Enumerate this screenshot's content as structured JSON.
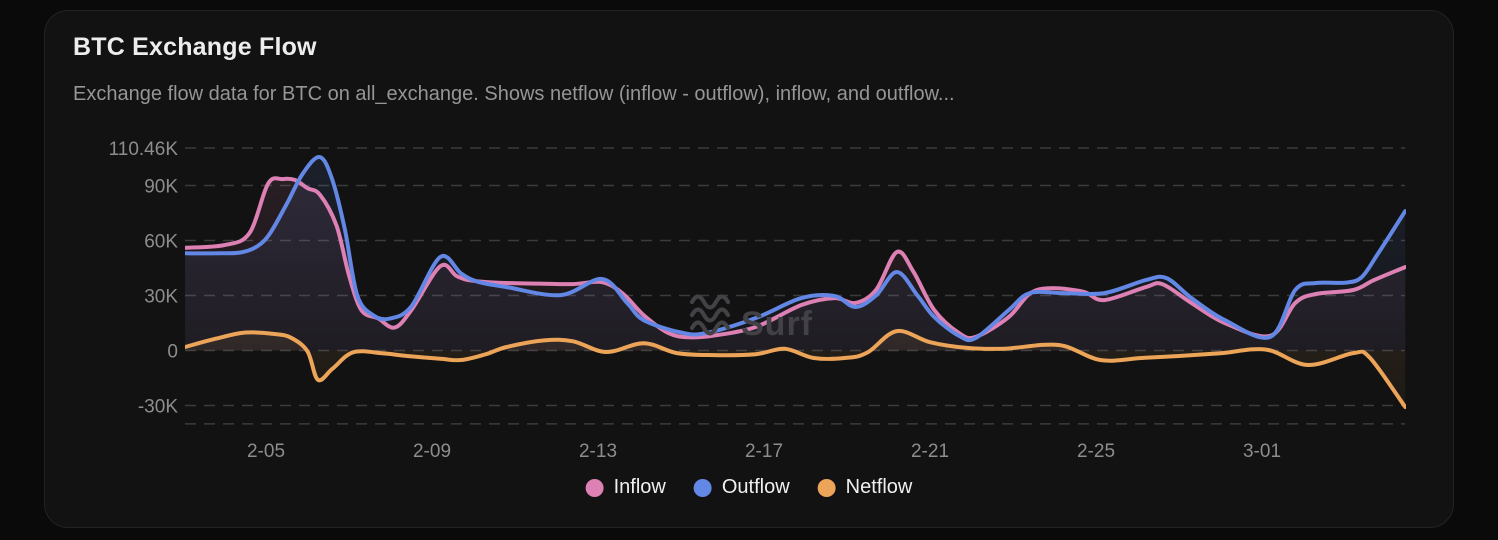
{
  "header": {
    "title": "BTC Exchange Flow",
    "subtitle": "Exchange flow data for BTC on all_exchange. Shows netflow (inflow - outflow), inflow, and outflow..."
  },
  "legend": {
    "items": [
      {
        "label": "Inflow",
        "color": "#dd80b4"
      },
      {
        "label": "Outflow",
        "color": "#6287e4"
      },
      {
        "label": "Netflow",
        "color": "#eba458"
      }
    ]
  },
  "watermark": {
    "icon": "waves-icon",
    "text": "Surf"
  },
  "colors": {
    "page_bg": "#0a0a0a",
    "card_bg": "#121212",
    "card_border": "#232323",
    "grid": "#3b3b3b",
    "axis_label": "#8d8d8d",
    "title": "#ededed",
    "subtitle": "#969696",
    "legend_text": "#f0f0f0",
    "watermark": "#414146",
    "inflow": "#dd80b4",
    "outflow": "#6287e4",
    "netflow": "#eba458"
  },
  "chart_data": {
    "type": "line",
    "title": "BTC Exchange Flow",
    "xlabel": "",
    "ylabel": "",
    "value_unit": "K (thousands of BTC)",
    "x_unit": "date (month-day), day offset measured from 2-03",
    "ylim": [
      -40,
      110.46
    ],
    "xlim_days": [
      0.05,
      29.45
    ],
    "grid": "dashed horizontal lines",
    "legend_position": "bottom center",
    "yticks": [
      {
        "label": "110.46K",
        "value": 110.46
      },
      {
        "label": "90K",
        "value": 90
      },
      {
        "label": "60K",
        "value": 60
      },
      {
        "label": "30K",
        "value": 30
      },
      {
        "label": "0",
        "value": 0
      },
      {
        "label": "-30K",
        "value": -30
      },
      {
        "label": "",
        "value": -40
      }
    ],
    "xticks": [
      {
        "label": "2-05",
        "day": 2
      },
      {
        "label": "2-09",
        "day": 6
      },
      {
        "label": "2-13",
        "day": 10
      },
      {
        "label": "2-17",
        "day": 14
      },
      {
        "label": "2-21",
        "day": 18
      },
      {
        "label": "2-25",
        "day": 22
      },
      {
        "label": "3-01",
        "day": 26
      }
    ],
    "series": [
      {
        "name": "Inflow",
        "color": "#dd80b4",
        "points": [
          [
            0.05,
            56
          ],
          [
            1.0,
            57.5
          ],
          [
            1.6,
            64
          ],
          [
            2.05,
            91
          ],
          [
            2.4,
            93.5
          ],
          [
            2.7,
            93
          ],
          [
            3.0,
            88.5
          ],
          [
            3.3,
            85
          ],
          [
            3.7,
            68
          ],
          [
            4.0,
            41
          ],
          [
            4.3,
            22
          ],
          [
            4.7,
            17.5
          ],
          [
            5.1,
            12.5
          ],
          [
            5.5,
            22
          ],
          [
            6.2,
            46
          ],
          [
            6.6,
            40.5
          ],
          [
            7.0,
            38
          ],
          [
            7.8,
            36.8
          ],
          [
            8.6,
            36.5
          ],
          [
            9.4,
            36.2
          ],
          [
            10.1,
            37.3
          ],
          [
            10.6,
            31
          ],
          [
            11.1,
            19.3
          ],
          [
            11.7,
            9.5
          ],
          [
            12.2,
            7.2
          ],
          [
            12.8,
            8.2
          ],
          [
            13.8,
            12.8
          ],
          [
            14.9,
            24.8
          ],
          [
            15.7,
            28.6
          ],
          [
            16.2,
            25.9
          ],
          [
            16.7,
            33
          ],
          [
            17.2,
            53.7
          ],
          [
            17.6,
            43
          ],
          [
            18.1,
            22.1
          ],
          [
            18.7,
            9.5
          ],
          [
            19.1,
            7.4
          ],
          [
            19.9,
            18.3
          ],
          [
            20.4,
            31
          ],
          [
            20.9,
            34
          ],
          [
            21.7,
            32
          ],
          [
            22.2,
            27.5
          ],
          [
            23.2,
            34.6
          ],
          [
            23.6,
            36.2
          ],
          [
            24.3,
            25.9
          ],
          [
            25.1,
            15
          ],
          [
            26.2,
            8
          ],
          [
            26.8,
            25.9
          ],
          [
            27.3,
            30.8
          ],
          [
            28.2,
            33
          ],
          [
            28.7,
            38.4
          ],
          [
            29.45,
            45.5
          ]
        ]
      },
      {
        "name": "Outflow",
        "color": "#6287e4",
        "points": [
          [
            0.05,
            53
          ],
          [
            0.9,
            53
          ],
          [
            1.4,
            53.5
          ],
          [
            1.8,
            57
          ],
          [
            2.1,
            64
          ],
          [
            2.5,
            80
          ],
          [
            2.9,
            97
          ],
          [
            3.3,
            105.5
          ],
          [
            3.6,
            93
          ],
          [
            3.9,
            66
          ],
          [
            4.2,
            30
          ],
          [
            4.6,
            19
          ],
          [
            5.0,
            17.5
          ],
          [
            5.5,
            24
          ],
          [
            6.2,
            51
          ],
          [
            6.7,
            42
          ],
          [
            7.1,
            37.5
          ],
          [
            7.8,
            34.6
          ],
          [
            9.1,
            30.2
          ],
          [
            10.1,
            39
          ],
          [
            10.7,
            26
          ],
          [
            11.1,
            16.6
          ],
          [
            12.0,
            9.8
          ],
          [
            12.6,
            9.5
          ],
          [
            13.8,
            17.7
          ],
          [
            14.9,
            28.6
          ],
          [
            15.7,
            29.7
          ],
          [
            16.2,
            23.7
          ],
          [
            16.7,
            30
          ],
          [
            17.2,
            42.8
          ],
          [
            17.7,
            30
          ],
          [
            18.1,
            18.3
          ],
          [
            18.7,
            8
          ],
          [
            19.1,
            6.8
          ],
          [
            19.9,
            22.1
          ],
          [
            20.4,
            31.3
          ],
          [
            21.2,
            31.3
          ],
          [
            22.2,
            31.3
          ],
          [
            23.2,
            38.4
          ],
          [
            23.7,
            39.5
          ],
          [
            24.3,
            28.6
          ],
          [
            25.1,
            16.6
          ],
          [
            26.2,
            7.4
          ],
          [
            26.8,
            33
          ],
          [
            27.3,
            36.8
          ],
          [
            28.0,
            37
          ],
          [
            28.4,
            40
          ],
          [
            28.8,
            53
          ],
          [
            29.45,
            76
          ]
        ]
      },
      {
        "name": "Netflow",
        "color": "#eba458",
        "points": [
          [
            0.05,
            1.9
          ],
          [
            0.8,
            6.5
          ],
          [
            1.5,
            9.8
          ],
          [
            2.2,
            9
          ],
          [
            2.6,
            7
          ],
          [
            3.0,
            -0.5
          ],
          [
            3.25,
            -16
          ],
          [
            3.6,
            -10
          ],
          [
            4.1,
            -1
          ],
          [
            4.8,
            -1.5
          ],
          [
            5.4,
            -3
          ],
          [
            6.2,
            -4.5
          ],
          [
            6.7,
            -5.2
          ],
          [
            7.3,
            -2
          ],
          [
            7.8,
            1.9
          ],
          [
            8.7,
            5.5
          ],
          [
            9.4,
            5
          ],
          [
            10.2,
            -0.8
          ],
          [
            11.1,
            4
          ],
          [
            11.9,
            -1.4
          ],
          [
            12.8,
            -2.5
          ],
          [
            13.8,
            -2
          ],
          [
            14.5,
            0.9
          ],
          [
            15.2,
            -4.1
          ],
          [
            16.0,
            -4
          ],
          [
            16.5,
            -1
          ],
          [
            17.2,
            10.6
          ],
          [
            18.0,
            4.5
          ],
          [
            18.9,
            1.4
          ],
          [
            19.8,
            1
          ],
          [
            21.1,
            3
          ],
          [
            22.1,
            -5.2
          ],
          [
            23.1,
            -4.1
          ],
          [
            24.0,
            -3
          ],
          [
            25.0,
            -1.5
          ],
          [
            26.1,
            0.5
          ],
          [
            27.1,
            -7.9
          ],
          [
            28.2,
            -1.4
          ],
          [
            28.6,
            -4
          ],
          [
            29.45,
            -30.8
          ]
        ]
      }
    ]
  }
}
